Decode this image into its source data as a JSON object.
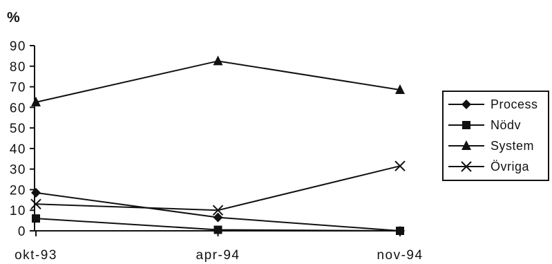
{
  "chart_data": {
    "type": "line",
    "unit_label": "%",
    "categories": [
      "okt-93",
      "apr-94",
      "nov-94"
    ],
    "ylim": [
      0,
      90
    ],
    "yticks": [
      0,
      10,
      20,
      30,
      40,
      50,
      60,
      70,
      80,
      90
    ],
    "grid": false,
    "legend_position": "right",
    "series": [
      {
        "name": "Process",
        "marker": "diamond",
        "values": [
          18.5,
          6.5,
          0
        ]
      },
      {
        "name": "Nödv",
        "marker": "square",
        "values": [
          6,
          0.5,
          0
        ]
      },
      {
        "name": "System",
        "marker": "triangle",
        "values": [
          62.5,
          82.5,
          68.5
        ]
      },
      {
        "name": "Övriga",
        "marker": "x",
        "values": [
          13,
          10,
          31.5
        ]
      }
    ]
  }
}
